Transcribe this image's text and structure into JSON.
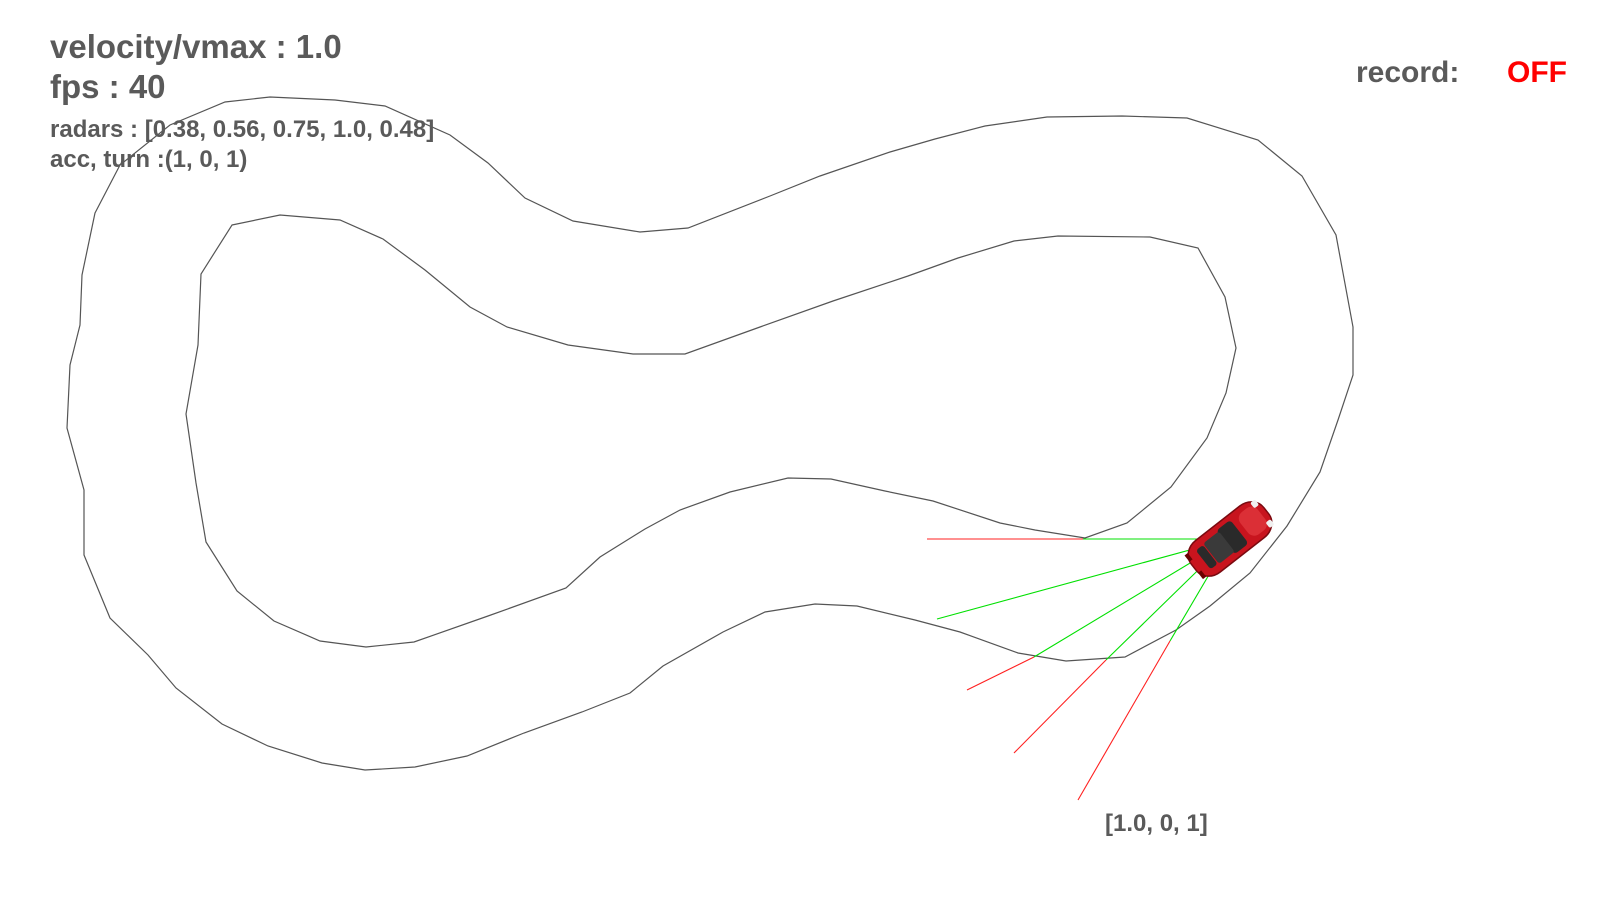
{
  "hud": {
    "velocity_text": "velocity/vmax : 1.0",
    "fps_text": "fps : 40",
    "radars_text": "radars : [0.38, 0.56, 0.75, 1.0, 0.48]",
    "acc_turn_text": "acc, turn :(1, 0, 1)",
    "record_label": "record:",
    "record_value": "OFF",
    "output_text": "[1.0, 0, 1]"
  },
  "state": {
    "velocity_ratio": 1.0,
    "fps": 40,
    "radars": [
      0.38,
      0.56,
      0.75,
      1.0,
      0.48
    ],
    "acc_turn": [
      1,
      0,
      1
    ],
    "record": false
  },
  "colors": {
    "background": "#ffffff",
    "track_line": "#555555",
    "hud_text": "#5a5a5a",
    "record_off": "#ff0000",
    "radar_free": "#00e000",
    "radar_blocked": "#ff2020",
    "car_body": "#c8141e",
    "car_glass": "#2a2a2a"
  }
}
